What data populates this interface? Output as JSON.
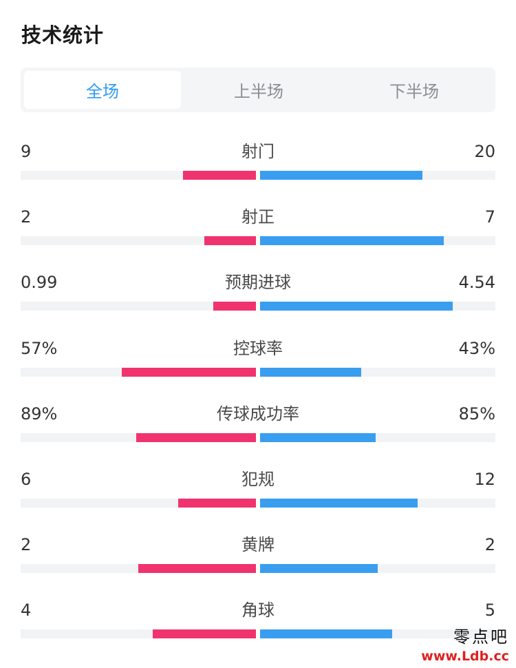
{
  "page_title": "技术统计",
  "tabs": [
    {
      "label": "全场",
      "active": true
    },
    {
      "label": "上半场",
      "active": false
    },
    {
      "label": "下半场",
      "active": false
    }
  ],
  "colors": {
    "home_bar": "#f0336e",
    "away_bar": "#399ef0",
    "active_tab": "#2f9bf0"
  },
  "stats": [
    {
      "label": "射门",
      "home": "9",
      "away": "20",
      "home_fill": 0.31,
      "away_fill": 0.69
    },
    {
      "label": "射正",
      "home": "2",
      "away": "7",
      "home_fill": 0.22,
      "away_fill": 0.78
    },
    {
      "label": "预期进球",
      "home": "0.99",
      "away": "4.54",
      "home_fill": 0.18,
      "away_fill": 0.82
    },
    {
      "label": "控球率",
      "home": "57%",
      "away": "43%",
      "home_fill": 0.57,
      "away_fill": 0.43
    },
    {
      "label": "传球成功率",
      "home": "89%",
      "away": "85%",
      "home_fill": 0.51,
      "away_fill": 0.49
    },
    {
      "label": "犯规",
      "home": "6",
      "away": "12",
      "home_fill": 0.33,
      "away_fill": 0.67
    },
    {
      "label": "黄牌",
      "home": "2",
      "away": "2",
      "home_fill": 0.5,
      "away_fill": 0.5
    },
    {
      "label": "角球",
      "home": "4",
      "away": "5",
      "home_fill": 0.44,
      "away_fill": 0.56
    }
  ],
  "watermark": {
    "line1": "零点吧",
    "line2": "www.Ldb.cc"
  }
}
